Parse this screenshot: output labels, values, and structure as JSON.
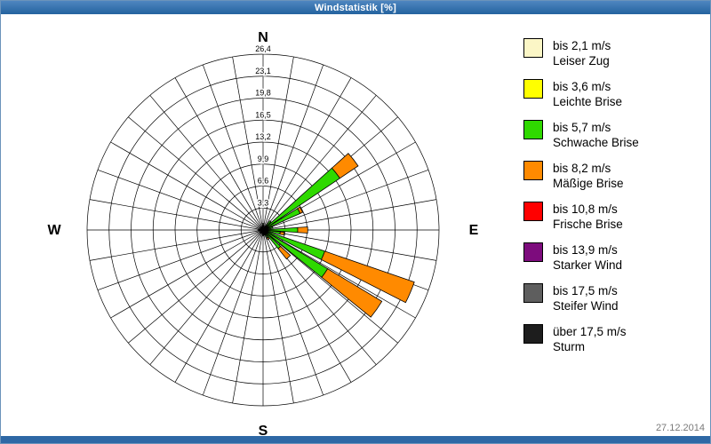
{
  "window": {
    "title": "Windstatistik [%]"
  },
  "footer": {
    "date": "27.12.2014"
  },
  "compass": {
    "n": "N",
    "e": "E",
    "s": "S",
    "w": "W"
  },
  "legend": {
    "items": [
      {
        "speed": "bis 2,1 m/s",
        "name": "Leiser Zug",
        "color": "#FBF6C6"
      },
      {
        "speed": "bis 3,6 m/s",
        "name": "Leichte Brise",
        "color": "#FFFF00"
      },
      {
        "speed": "bis 5,7 m/s",
        "name": "Schwache Brise",
        "color": "#2FD900"
      },
      {
        "speed": "bis 8,2 m/s",
        "name": "Mäßige Brise",
        "color": "#FF8A00"
      },
      {
        "speed": "bis 10,8 m/s",
        "name": "Frische Brise",
        "color": "#FF0000"
      },
      {
        "speed": "bis 13,9 m/s",
        "name": "Starker Wind",
        "color": "#7D0C7D"
      },
      {
        "speed": "bis 17,5 m/s",
        "name": "Steifer Wind",
        "color": "#5E5E5E"
      },
      {
        "speed": "über 17,5 m/s",
        "name": "Sturm",
        "color": "#1D1D1D"
      }
    ]
  },
  "chart_data": {
    "type": "windrose (stacked polar bar)",
    "title": "Windstatistik [%]",
    "units": "%",
    "rmax": 26.4,
    "radial_ticks": [
      3.3,
      6.6,
      9.9,
      13.2,
      16.5,
      19.8,
      23.1,
      26.4
    ],
    "radial_tick_labels": [
      "3,3",
      "6,6",
      "9,9",
      "13,2",
      "16,5",
      "19,8",
      "23,1",
      "26,4"
    ],
    "grid_sector_deg": 10,
    "petal_half_width_deg": 4,
    "classes": [
      "bis 2,1 m/s",
      "bis 3,6 m/s",
      "bis 5,7 m/s",
      "bis 8,2 m/s",
      "bis 10,8 m/s",
      "bis 13,9 m/s",
      "bis 17,5 m/s",
      "über 17,5 m/s"
    ],
    "petals": [
      {
        "dir": 0,
        "values": [
          0.2,
          0.3,
          0.5,
          0
        ]
      },
      {
        "dir": 30,
        "values": [
          0.1,
          0.2,
          0.4,
          0
        ]
      },
      {
        "dir": 40,
        "values": [
          0.2,
          0.3,
          1.2,
          0
        ]
      },
      {
        "dir": 52,
        "values": [
          0.3,
          0.6,
          13.0,
          3.3
        ]
      },
      {
        "dir": 62,
        "values": [
          0.2,
          0.4,
          5.5,
          0.4
        ]
      },
      {
        "dir": 75,
        "values": [
          0.2,
          0.3,
          1.0,
          0
        ]
      },
      {
        "dir": 90,
        "values": [
          0.3,
          0.5,
          4.4,
          1.5
        ]
      },
      {
        "dir": 100,
        "values": [
          0.2,
          0.4,
          2.0,
          0.6
        ]
      },
      {
        "dir": 113,
        "values": [
          0.3,
          0.5,
          9.0,
          14.2
        ]
      },
      {
        "dir": 125,
        "values": [
          0.3,
          0.5,
          10.5,
          9.5
        ]
      },
      {
        "dir": 137,
        "values": [
          0.2,
          0.4,
          3.0,
          2.0
        ]
      },
      {
        "dir": 150,
        "values": [
          0.1,
          0.2,
          1.0,
          0.3
        ]
      },
      {
        "dir": 165,
        "values": [
          0.1,
          0.2,
          0.5,
          0
        ]
      },
      {
        "dir": 180,
        "values": [
          0.1,
          0.2,
          0.6,
          0
        ]
      },
      {
        "dir": 205,
        "values": [
          0.1,
          0.1,
          0.3,
          0
        ]
      },
      {
        "dir": 225,
        "values": [
          0.1,
          0.1,
          0.4,
          0
        ]
      },
      {
        "dir": 250,
        "values": [
          0.1,
          0.1,
          0.2,
          0
        ]
      },
      {
        "dir": 270,
        "values": [
          0.1,
          0.2,
          0.4,
          0
        ]
      },
      {
        "dir": 295,
        "values": [
          0.1,
          0.1,
          0.2,
          0
        ]
      },
      {
        "dir": 315,
        "values": [
          0.1,
          0.1,
          0.3,
          0
        ]
      },
      {
        "dir": 340,
        "values": [
          0.1,
          0.1,
          0.3,
          0
        ]
      }
    ]
  }
}
